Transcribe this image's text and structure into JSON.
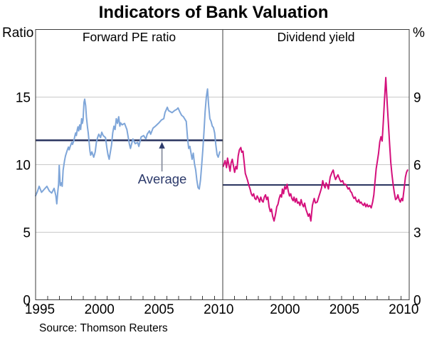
{
  "header": {
    "title": "Indicators of Bank Valuation"
  },
  "source_note": "Source: Thomson Reuters",
  "colors": {
    "pe_line": "#7fa6d9",
    "dy_line": "#d4107c",
    "average_line": "#2b3560",
    "annotation_text": "#2c3a6b",
    "arrow_shaft": "#8a90a0",
    "arrow_head": "#2c3a6b",
    "grid": "#c9c9c9",
    "frame": "#3c3c3c",
    "text": "#000000"
  },
  "chart_data": [
    {
      "type": "line",
      "panel_title": "Forward PE ratio",
      "corner_label": "Ratio",
      "axis_side": "left",
      "ylim": [
        0,
        20
      ],
      "yticks": [
        0,
        5,
        10,
        15
      ],
      "xlim": [
        1995,
        2010.7
      ],
      "xticks": [
        1995,
        2000,
        2005,
        2010
      ],
      "grid": true,
      "average": 11.8,
      "annotation": {
        "text": "Average",
        "arrow_year": 2005.6
      },
      "series": {
        "name": "Forward PE ratio",
        "color_key": "pe_line",
        "points": [
          [
            1995.0,
            7.7
          ],
          [
            1995.15,
            8.0
          ],
          [
            1995.3,
            8.4
          ],
          [
            1995.5,
            7.95
          ],
          [
            1995.7,
            8.15
          ],
          [
            1995.95,
            8.4
          ],
          [
            1996.15,
            8.05
          ],
          [
            1996.35,
            7.9
          ],
          [
            1996.55,
            8.25
          ],
          [
            1996.7,
            7.7
          ],
          [
            1996.78,
            7.1
          ],
          [
            1996.87,
            8.05
          ],
          [
            1996.93,
            8.55
          ],
          [
            1996.98,
            9.95
          ],
          [
            1997.07,
            8.45
          ],
          [
            1997.17,
            8.65
          ],
          [
            1997.23,
            8.4
          ],
          [
            1997.31,
            9.6
          ],
          [
            1997.37,
            9.95
          ],
          [
            1997.43,
            10.3
          ],
          [
            1997.51,
            10.65
          ],
          [
            1997.67,
            11.1
          ],
          [
            1997.76,
            11.3
          ],
          [
            1997.82,
            11.1
          ],
          [
            1997.91,
            11.35
          ],
          [
            1998.03,
            11.65
          ],
          [
            1998.1,
            11.5
          ],
          [
            1998.22,
            11.8
          ],
          [
            1998.3,
            12.15
          ],
          [
            1998.36,
            12.35
          ],
          [
            1998.42,
            12.15
          ],
          [
            1998.5,
            12.6
          ],
          [
            1998.56,
            12.8
          ],
          [
            1998.62,
            12.5
          ],
          [
            1998.7,
            12.95
          ],
          [
            1998.78,
            12.6
          ],
          [
            1998.86,
            13.4
          ],
          [
            1998.92,
            13.05
          ],
          [
            1998.98,
            13.3
          ],
          [
            1999.06,
            14.6
          ],
          [
            1999.12,
            14.85
          ],
          [
            1999.2,
            14.35
          ],
          [
            1999.26,
            13.55
          ],
          [
            1999.36,
            12.75
          ],
          [
            1999.42,
            12.35
          ],
          [
            1999.5,
            11.55
          ],
          [
            1999.56,
            11.0
          ],
          [
            1999.62,
            10.7
          ],
          [
            1999.72,
            10.95
          ],
          [
            1999.8,
            10.75
          ],
          [
            1999.88,
            10.55
          ],
          [
            2000.0,
            10.95
          ],
          [
            2000.1,
            11.65
          ],
          [
            2000.2,
            12.0
          ],
          [
            2000.3,
            12.25
          ],
          [
            2000.45,
            12.0
          ],
          [
            2000.55,
            12.4
          ],
          [
            2000.67,
            12.15
          ],
          [
            2000.87,
            12.0
          ],
          [
            2000.97,
            11.3
          ],
          [
            2001.07,
            10.75
          ],
          [
            2001.17,
            10.4
          ],
          [
            2001.37,
            11.45
          ],
          [
            2001.47,
            12.35
          ],
          [
            2001.57,
            12.85
          ],
          [
            2001.67,
            12.6
          ],
          [
            2001.77,
            13.4
          ],
          [
            2001.87,
            13.05
          ],
          [
            2001.97,
            13.55
          ],
          [
            2002.07,
            12.85
          ],
          [
            2002.13,
            13.1
          ],
          [
            2002.26,
            12.95
          ],
          [
            2002.46,
            13.05
          ],
          [
            2002.66,
            12.6
          ],
          [
            2002.86,
            11.55
          ],
          [
            2002.96,
            11.2
          ],
          [
            2003.16,
            11.9
          ],
          [
            2003.36,
            11.55
          ],
          [
            2003.56,
            11.65
          ],
          [
            2003.66,
            11.35
          ],
          [
            2003.85,
            12.05
          ],
          [
            2004.06,
            12.15
          ],
          [
            2004.25,
            11.9
          ],
          [
            2004.36,
            12.25
          ],
          [
            2004.55,
            12.5
          ],
          [
            2004.65,
            12.25
          ],
          [
            2004.85,
            12.7
          ],
          [
            2005.05,
            12.85
          ],
          [
            2005.35,
            13.1
          ],
          [
            2005.55,
            13.3
          ],
          [
            2005.75,
            13.4
          ],
          [
            2005.85,
            13.85
          ],
          [
            2006.05,
            14.25
          ],
          [
            2006.15,
            14.0
          ],
          [
            2006.45,
            13.85
          ],
          [
            2006.65,
            14.0
          ],
          [
            2006.85,
            14.1
          ],
          [
            2006.95,
            14.2
          ],
          [
            2007.1,
            13.9
          ],
          [
            2007.25,
            13.65
          ],
          [
            2007.4,
            13.55
          ],
          [
            2007.64,
            13.2
          ],
          [
            2007.74,
            12.05
          ],
          [
            2007.84,
            11.2
          ],
          [
            2007.94,
            11.35
          ],
          [
            2008.13,
            10.4
          ],
          [
            2008.23,
            10.85
          ],
          [
            2008.33,
            10.05
          ],
          [
            2008.43,
            9.6
          ],
          [
            2008.53,
            8.85
          ],
          [
            2008.63,
            8.3
          ],
          [
            2008.73,
            8.2
          ],
          [
            2008.83,
            8.85
          ],
          [
            2008.93,
            9.9
          ],
          [
            2009.03,
            11.1
          ],
          [
            2009.13,
            12.5
          ],
          [
            2009.22,
            13.9
          ],
          [
            2009.32,
            15.0
          ],
          [
            2009.42,
            15.6
          ],
          [
            2009.52,
            14.35
          ],
          [
            2009.62,
            13.4
          ],
          [
            2009.72,
            13.2
          ],
          [
            2009.82,
            12.85
          ],
          [
            2009.92,
            12.75
          ],
          [
            2010.02,
            12.35
          ],
          [
            2010.12,
            11.45
          ],
          [
            2010.22,
            10.75
          ],
          [
            2010.32,
            10.55
          ],
          [
            2010.45,
            10.95
          ]
        ]
      }
    },
    {
      "type": "line",
      "panel_title": "Dividend yield",
      "corner_label": "%",
      "axis_side": "right",
      "ylim": [
        0,
        12
      ],
      "yticks": [
        0,
        3,
        6,
        9
      ],
      "xlim": [
        1995,
        2010.7
      ],
      "xticks": [
        2000,
        2005,
        2010
      ],
      "grid": true,
      "average": 5.1,
      "annotation": null,
      "series": {
        "name": "Dividend yield",
        "color_key": "dy_line",
        "points": [
          [
            1995.04,
            5.92
          ],
          [
            1995.2,
            6.18
          ],
          [
            1995.32,
            5.87
          ],
          [
            1995.4,
            6.29
          ],
          [
            1995.62,
            5.71
          ],
          [
            1995.7,
            6.08
          ],
          [
            1995.8,
            6.24
          ],
          [
            1996.0,
            5.66
          ],
          [
            1996.1,
            5.92
          ],
          [
            1996.2,
            5.81
          ],
          [
            1996.3,
            6.39
          ],
          [
            1996.4,
            6.66
          ],
          [
            1996.52,
            6.76
          ],
          [
            1996.6,
            6.55
          ],
          [
            1996.7,
            6.6
          ],
          [
            1996.8,
            6.13
          ],
          [
            1996.9,
            5.61
          ],
          [
            1997.0,
            5.45
          ],
          [
            1997.1,
            5.29
          ],
          [
            1997.2,
            5.08
          ],
          [
            1997.3,
            4.92
          ],
          [
            1997.4,
            4.71
          ],
          [
            1997.5,
            4.61
          ],
          [
            1997.6,
            4.71
          ],
          [
            1997.7,
            4.5
          ],
          [
            1997.8,
            4.45
          ],
          [
            1997.9,
            4.61
          ],
          [
            1998.0,
            4.5
          ],
          [
            1998.1,
            4.34
          ],
          [
            1998.2,
            4.56
          ],
          [
            1998.3,
            4.4
          ],
          [
            1998.4,
            4.34
          ],
          [
            1998.5,
            4.56
          ],
          [
            1998.6,
            4.66
          ],
          [
            1998.7,
            4.45
          ],
          [
            1998.8,
            4.56
          ],
          [
            1998.9,
            4.13
          ],
          [
            1999.0,
            3.92
          ],
          [
            1999.1,
            4.03
          ],
          [
            1999.2,
            3.71
          ],
          [
            1999.32,
            3.5
          ],
          [
            1999.45,
            3.82
          ],
          [
            1999.55,
            4.13
          ],
          [
            1999.65,
            4.24
          ],
          [
            1999.75,
            4.5
          ],
          [
            1999.85,
            4.66
          ],
          [
            1999.95,
            4.56
          ],
          [
            2000.02,
            4.92
          ],
          [
            2000.12,
            4.71
          ],
          [
            2000.22,
            5.03
          ],
          [
            2000.32,
            4.92
          ],
          [
            2000.42,
            5.13
          ],
          [
            2000.52,
            4.82
          ],
          [
            2000.62,
            4.61
          ],
          [
            2000.72,
            4.71
          ],
          [
            2000.82,
            4.5
          ],
          [
            2000.92,
            4.4
          ],
          [
            2001.0,
            4.56
          ],
          [
            2001.1,
            4.34
          ],
          [
            2001.2,
            4.5
          ],
          [
            2001.3,
            4.29
          ],
          [
            2001.4,
            4.34
          ],
          [
            2001.5,
            4.19
          ],
          [
            2001.6,
            4.45
          ],
          [
            2001.7,
            4.24
          ],
          [
            2001.8,
            4.13
          ],
          [
            2001.9,
            4.29
          ],
          [
            2002.0,
            4.03
          ],
          [
            2002.1,
            3.87
          ],
          [
            2002.2,
            3.71
          ],
          [
            2002.3,
            3.82
          ],
          [
            2002.42,
            3.5
          ],
          [
            2002.55,
            4.2
          ],
          [
            2002.7,
            4.5
          ],
          [
            2002.8,
            4.3
          ],
          [
            2002.95,
            4.34
          ],
          [
            2003.1,
            4.6
          ],
          [
            2003.2,
            4.76
          ],
          [
            2003.32,
            4.97
          ],
          [
            2003.42,
            5.29
          ],
          [
            2003.52,
            5.08
          ],
          [
            2003.62,
            4.97
          ],
          [
            2003.7,
            5.19
          ],
          [
            2003.8,
            5.08
          ],
          [
            2003.9,
            4.92
          ],
          [
            2004.05,
            5.45
          ],
          [
            2004.2,
            5.66
          ],
          [
            2004.3,
            5.76
          ],
          [
            2004.4,
            5.5
          ],
          [
            2004.5,
            5.34
          ],
          [
            2004.6,
            5.45
          ],
          [
            2004.7,
            5.55
          ],
          [
            2004.85,
            5.34
          ],
          [
            2004.95,
            5.24
          ],
          [
            2005.1,
            5.29
          ],
          [
            2005.2,
            5.13
          ],
          [
            2005.35,
            5.13
          ],
          [
            2005.45,
            5.03
          ],
          [
            2005.55,
            4.92
          ],
          [
            2005.65,
            4.97
          ],
          [
            2005.75,
            4.82
          ],
          [
            2005.85,
            4.76
          ],
          [
            2005.95,
            4.61
          ],
          [
            2006.05,
            4.5
          ],
          [
            2006.15,
            4.56
          ],
          [
            2006.25,
            4.4
          ],
          [
            2006.35,
            4.34
          ],
          [
            2006.45,
            4.45
          ],
          [
            2006.55,
            4.29
          ],
          [
            2006.65,
            4.34
          ],
          [
            2006.75,
            4.24
          ],
          [
            2006.85,
            4.19
          ],
          [
            2006.95,
            4.29
          ],
          [
            2007.05,
            4.13
          ],
          [
            2007.15,
            4.24
          ],
          [
            2007.25,
            4.13
          ],
          [
            2007.38,
            4.19
          ],
          [
            2007.5,
            4.08
          ],
          [
            2007.62,
            4.34
          ],
          [
            2007.72,
            4.66
          ],
          [
            2007.82,
            5.24
          ],
          [
            2007.92,
            5.82
          ],
          [
            2008.0,
            6.08
          ],
          [
            2008.12,
            6.5
          ],
          [
            2008.22,
            7.0
          ],
          [
            2008.32,
            7.24
          ],
          [
            2008.42,
            7.05
          ],
          [
            2008.52,
            7.9
          ],
          [
            2008.62,
            8.9
          ],
          [
            2008.73,
            9.87
          ],
          [
            2008.85,
            8.7
          ],
          [
            2008.95,
            7.8
          ],
          [
            2009.05,
            6.9
          ],
          [
            2009.15,
            6.1
          ],
          [
            2009.25,
            5.55
          ],
          [
            2009.35,
            5.1
          ],
          [
            2009.45,
            4.75
          ],
          [
            2009.55,
            4.45
          ],
          [
            2009.65,
            4.5
          ],
          [
            2009.75,
            4.66
          ],
          [
            2009.85,
            4.45
          ],
          [
            2009.95,
            4.34
          ],
          [
            2010.05,
            4.5
          ],
          [
            2010.15,
            4.4
          ],
          [
            2010.27,
            4.92
          ],
          [
            2010.38,
            5.45
          ],
          [
            2010.47,
            5.66
          ],
          [
            2010.56,
            5.76
          ]
        ]
      }
    }
  ]
}
